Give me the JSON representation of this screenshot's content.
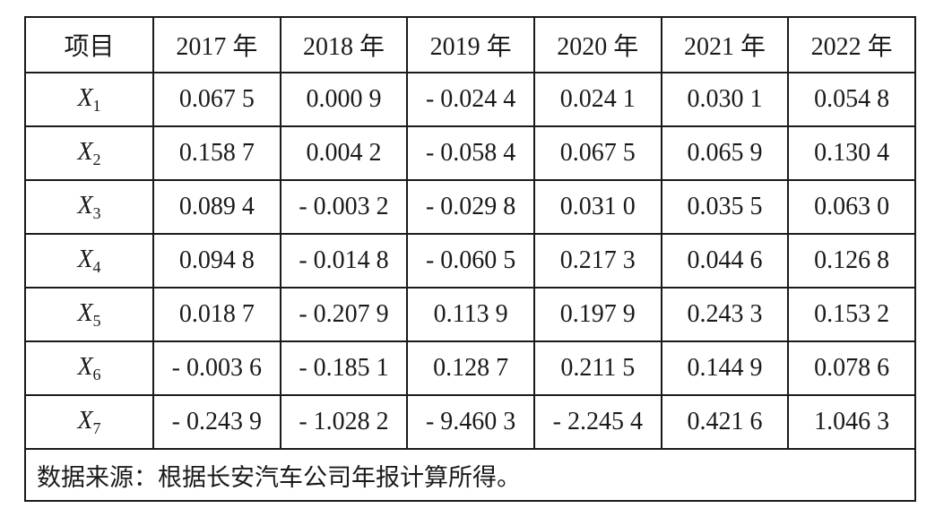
{
  "table": {
    "header": [
      "项目",
      "2017 年",
      "2018 年",
      "2019 年",
      "2020 年",
      "2021 年",
      "2022 年"
    ],
    "rows": [
      {
        "label": "X",
        "sub": "1",
        "cells": [
          "0.067 5",
          "0.000 9",
          "- 0.024 4",
          "0.024 1",
          "0.030 1",
          "0.054 8"
        ]
      },
      {
        "label": "X",
        "sub": "2",
        "cells": [
          "0.158 7",
          "0.004 2",
          "- 0.058 4",
          "0.067 5",
          "0.065 9",
          "0.130 4"
        ]
      },
      {
        "label": "X",
        "sub": "3",
        "cells": [
          "0.089 4",
          "- 0.003 2",
          "- 0.029 8",
          "0.031 0",
          "0.035 5",
          "0.063 0"
        ]
      },
      {
        "label": "X",
        "sub": "4",
        "cells": [
          "0.094 8",
          "- 0.014 8",
          "- 0.060 5",
          "0.217 3",
          "0.044 6",
          "0.126 8"
        ]
      },
      {
        "label": "X",
        "sub": "5",
        "cells": [
          "0.018 7",
          "- 0.207 9",
          "0.113 9",
          "0.197 9",
          "0.243 3",
          "0.153 2"
        ]
      },
      {
        "label": "X",
        "sub": "6",
        "cells": [
          "- 0.003 6",
          "- 0.185 1",
          "0.128 7",
          "0.211 5",
          "0.144 9",
          "0.078 6"
        ]
      },
      {
        "label": "X",
        "sub": "7",
        "cells": [
          "- 0.243 9",
          "- 1.028 2",
          "- 9.460 3",
          "- 2.245 4",
          "0.421 6",
          "1.046 3"
        ]
      }
    ],
    "note": "数据来源：根据长安汽车公司年报计算所得。"
  }
}
